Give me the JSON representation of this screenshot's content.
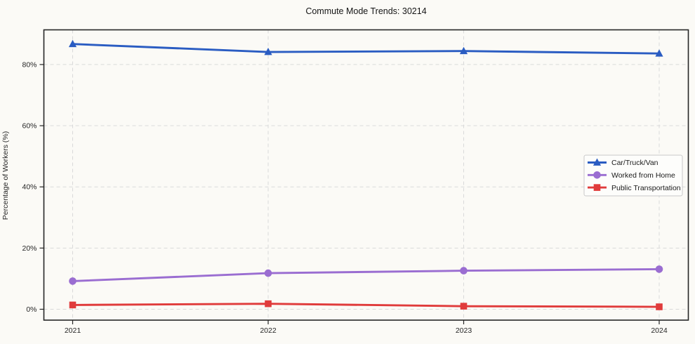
{
  "figure": {
    "background": "#fbfaf6",
    "spine_color": "#262626",
    "grid_color": "#d9d9d9",
    "tick_label_color": "#262626"
  },
  "chart_data": {
    "type": "line",
    "title": "Commute Mode Trends: 30214",
    "xlabel": "",
    "ylabel": "Percentage of Workers (%)",
    "categories": [
      "2021",
      "2022",
      "2023",
      "2024"
    ],
    "series": [
      {
        "name": "Car/Truck/Van",
        "color": "#2a5cc2",
        "marker": "triangle",
        "values": [
          86.7,
          84.1,
          84.4,
          83.6
        ]
      },
      {
        "name": "Worked from Home",
        "color": "#9a6dd1",
        "marker": "circle",
        "values": [
          9.2,
          11.8,
          12.6,
          13.1
        ]
      },
      {
        "name": "Public Transportation",
        "color": "#e03b3b",
        "marker": "square",
        "values": [
          1.4,
          1.8,
          1.0,
          0.8
        ]
      }
    ],
    "yticks": [
      0,
      20,
      40,
      60,
      80
    ],
    "ytick_labels": [
      "0%",
      "20%",
      "40%",
      "60%",
      "80%"
    ],
    "ylim": [
      -3.6,
      91.2
    ],
    "grid": true,
    "grid_style": "dashed",
    "legend_position": "right-middle"
  }
}
